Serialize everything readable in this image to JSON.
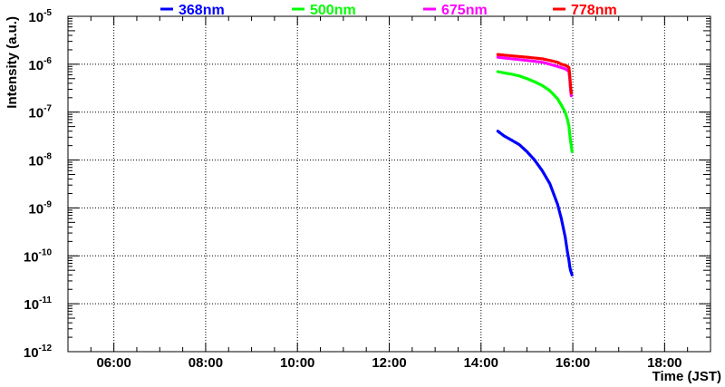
{
  "chart_data": {
    "type": "scatter",
    "title": "",
    "xlabel": "Time (JST)",
    "ylabel": "Intensity (a.u.)",
    "xlim": [
      "05:00",
      "19:00"
    ],
    "xticks": [
      "06:00",
      "08:00",
      "10:00",
      "12:00",
      "14:00",
      "16:00",
      "18:00"
    ],
    "ylim": [
      1e-12,
      1e-05
    ],
    "yscale": "log",
    "yticks": [
      {
        "base": "10",
        "exp": "-12"
      },
      {
        "base": "10",
        "exp": "-11"
      },
      {
        "base": "10",
        "exp": "-10"
      },
      {
        "base": "10",
        "exp": "-9"
      },
      {
        "base": "10",
        "exp": "-8"
      },
      {
        "base": "10",
        "exp": "-7"
      },
      {
        "base": "10",
        "exp": "-6"
      },
      {
        "base": "10",
        "exp": "-5"
      }
    ],
    "grid": true,
    "legend_position": "top",
    "series": [
      {
        "name": "368nm",
        "color": "#0000ff",
        "x": [
          "14:22",
          "14:30",
          "14:40",
          "14:50",
          "15:00",
          "15:10",
          "15:20",
          "15:30",
          "15:40",
          "15:45",
          "15:50",
          "15:53",
          "15:55",
          "15:56",
          "15:57",
          "15:58",
          "15:59"
        ],
        "y": [
          4e-08,
          3.2e-08,
          2.6e-08,
          2.1e-08,
          1.5e-08,
          1e-08,
          6e-09,
          3.2e-09,
          1.2e-09,
          6e-10,
          2.5e-10,
          1.2e-10,
          8e-11,
          6e-11,
          5e-11,
          4.5e-11,
          4e-11
        ]
      },
      {
        "name": "500nm",
        "color": "#00ff00",
        "x": [
          "14:22",
          "14:30",
          "14:40",
          "14:50",
          "15:00",
          "15:10",
          "15:20",
          "15:30",
          "15:40",
          "15:45",
          "15:50",
          "15:53",
          "15:55",
          "15:56",
          "15:57",
          "15:58",
          "15:59"
        ],
        "y": [
          7e-07,
          6.6e-07,
          6.2e-07,
          5.7e-07,
          5e-07,
          4.3e-07,
          3.6e-07,
          2.8e-07,
          1.9e-07,
          1.4e-07,
          1e-07,
          7e-08,
          5e-08,
          3.5e-08,
          2.5e-08,
          2e-08,
          1.5e-08
        ]
      },
      {
        "name": "675nm",
        "color": "#ff00ff",
        "x": [
          "14:22",
          "14:30",
          "14:40",
          "14:50",
          "15:00",
          "15:10",
          "15:20",
          "15:30",
          "15:40",
          "15:45",
          "15:50",
          "15:53",
          "15:55",
          "15:56",
          "15:57",
          "15:58"
        ],
        "y": [
          1.4e-06,
          1.35e-06,
          1.3e-06,
          1.25e-06,
          1.2e-06,
          1.15e-06,
          1.1e-06,
          1e-06,
          9e-07,
          8.5e-07,
          8e-07,
          7.5e-07,
          7e-07,
          5e-07,
          3e-07,
          2.2e-07
        ]
      },
      {
        "name": "778nm",
        "color": "#ff0000",
        "x": [
          "14:22",
          "14:30",
          "14:40",
          "14:50",
          "15:00",
          "15:10",
          "15:20",
          "15:30",
          "15:40",
          "15:45",
          "15:50",
          "15:53",
          "15:55",
          "15:56",
          "15:57",
          "15:58"
        ],
        "y": [
          1.6e-06,
          1.55e-06,
          1.5e-06,
          1.45e-06,
          1.4e-06,
          1.35e-06,
          1.3e-06,
          1.2e-06,
          1.1e-06,
          1e-06,
          9.5e-07,
          9e-07,
          8.5e-07,
          6e-07,
          3.5e-07,
          2.5e-07
        ]
      }
    ]
  }
}
